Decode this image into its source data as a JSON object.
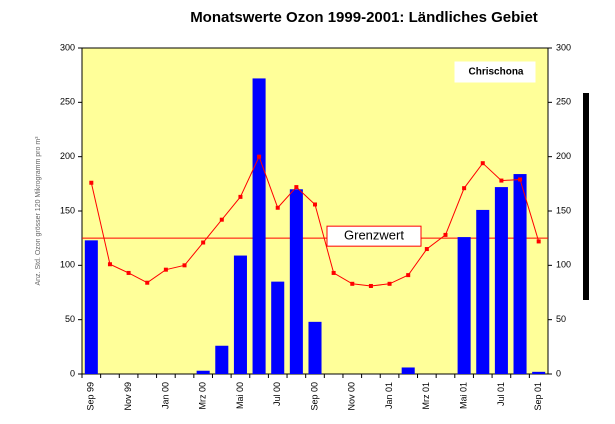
{
  "chart_data": {
    "type": "bar-line",
    "title": "Monatswerte Ozon 1999-2001: Ländliches Gebiet",
    "y_label": "Anz. Std. Ozon grösser 120 Mikrogramm pro m³",
    "station": "Chrischona",
    "categories": [
      "Sep 99",
      null,
      "Nov 99",
      null,
      "Jan 00",
      null,
      "Mrz 00",
      null,
      "Mai 00",
      null,
      "Jul 00",
      null,
      "Sep 00",
      null,
      "Nov 00",
      null,
      "Jan 01",
      null,
      "Mrz 01",
      null,
      "Mai 01",
      null,
      "Jul 01",
      null,
      "Sep 01"
    ],
    "series": [
      {
        "type": "bar",
        "color": "#0000ff",
        "values": [
          123,
          0,
          0,
          0,
          0,
          0,
          3,
          26,
          109,
          272,
          85,
          170,
          48,
          0,
          0,
          0,
          0,
          6,
          0,
          0,
          126,
          151,
          172,
          184,
          2
        ]
      },
      {
        "type": "line",
        "color": "#ff0000",
        "values": [
          176,
          101,
          93,
          84,
          96,
          100,
          121,
          142,
          163,
          200,
          153,
          172,
          156,
          93,
          83,
          81,
          83,
          91,
          115,
          128,
          171,
          194,
          178,
          179,
          122
        ]
      }
    ],
    "threshold": {
      "value": 125,
      "label": "Grenzwert",
      "color": "#ff0000"
    },
    "ylim": [
      0,
      300
    ],
    "yticks": [
      0,
      50,
      100,
      150,
      200,
      250,
      300
    ],
    "y2lim": [
      0,
      300
    ],
    "y2ticks": [
      0,
      50,
      100,
      150,
      200,
      250,
      300
    ],
    "background": "#ffff99"
  }
}
